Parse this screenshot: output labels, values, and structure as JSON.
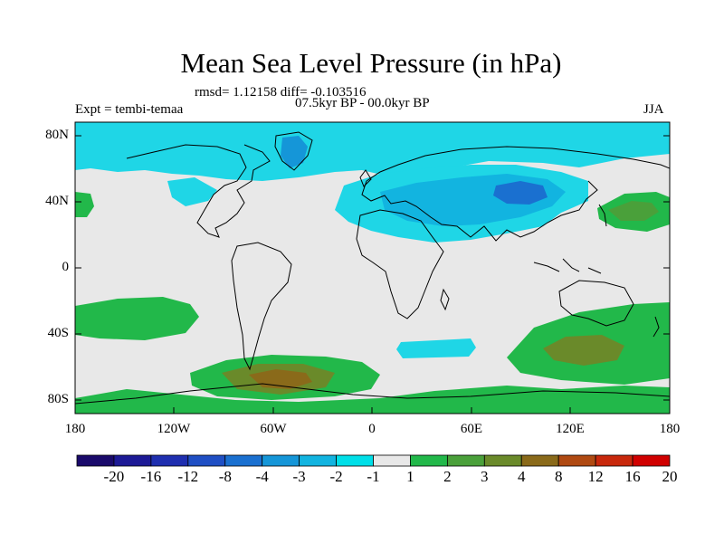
{
  "title": "Mean Sea Level Pressure (in hPa)",
  "stats": "rmsd= 1.12158 diff= -0.103516",
  "period": "07.5kyr BP - 00.0kyr BP",
  "experiment": "Expt = tembi-temaa",
  "season": "JJA",
  "axes": {
    "lat_labels": [
      "80N",
      "40N",
      "0",
      "40S",
      "80S"
    ],
    "lon_labels": [
      "180",
      "120W",
      "60W",
      "0",
      "60E",
      "120E",
      "180"
    ]
  },
  "colorbar": {
    "labels": [
      "-20",
      "-16",
      "-12",
      "-8",
      "-4",
      "-3",
      "-2",
      "-1",
      "1",
      "2",
      "3",
      "4",
      "8",
      "12",
      "16",
      "20"
    ],
    "colors": [
      "#1a0a6b",
      "#1d1a96",
      "#1f2fb0",
      "#1f4fc4",
      "#1a70d0",
      "#1596d8",
      "#12b4e0",
      "#00dfe8",
      "#e8e8e8",
      "#22b84a",
      "#4aa03a",
      "#6a8a2a",
      "#8a6a1a",
      "#b04a12",
      "#c8280c",
      "#d00000"
    ]
  },
  "colors": {
    "land_outline": "#000000",
    "background": "#e8e8e8"
  }
}
